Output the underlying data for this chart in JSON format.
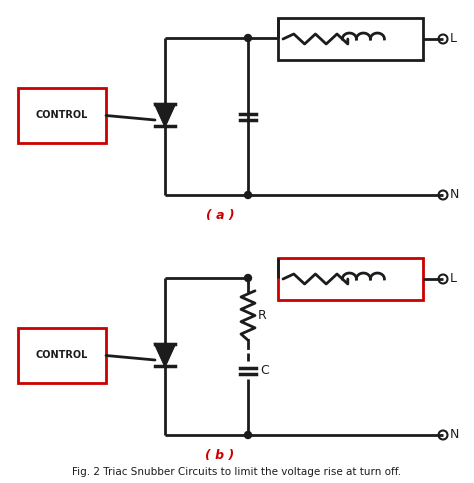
{
  "bg_color": "#ffffff",
  "dark_color": "#1c1c1c",
  "red_color": "#cc0000",
  "dark_red": "#8b0000",
  "fig_caption": "Fig. 2 Triac Snubber Circuits to limit the voltage rise at turn off.",
  "label_a": "( a )",
  "label_b": "( b )",
  "label_L": "L",
  "label_N": "N",
  "label_R": "R",
  "label_C": "C",
  "label_CONTROL": "CONTROL",
  "figsize": [
    4.74,
    4.83
  ],
  "dpi": 100
}
